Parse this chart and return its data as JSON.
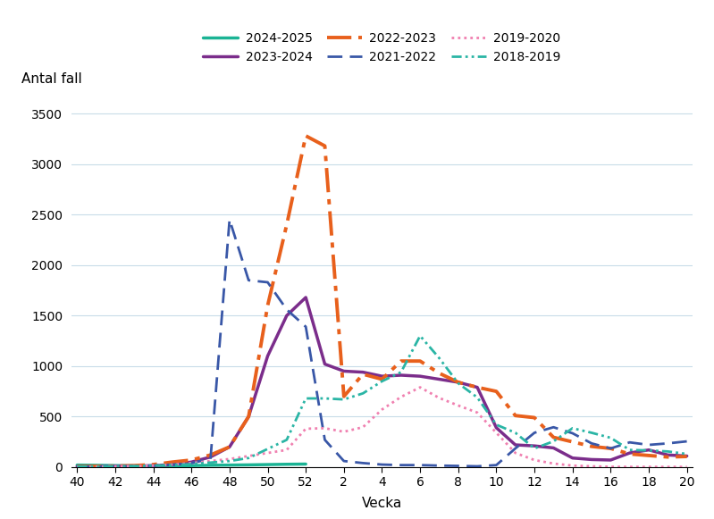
{
  "xlabel": "Vecka",
  "ylabel": "Antal fall",
  "ylim": [
    0,
    3700
  ],
  "yticks": [
    0,
    500,
    1000,
    1500,
    2000,
    2500,
    3000,
    3500
  ],
  "xtick_labels": [
    "40",
    "42",
    "44",
    "46",
    "48",
    "50",
    "52",
    "2",
    "4",
    "6",
    "8",
    "10",
    "12",
    "14",
    "16",
    "18",
    "20"
  ],
  "xtick_weeks": [
    40,
    42,
    44,
    46,
    48,
    50,
    52,
    2,
    4,
    6,
    8,
    10,
    12,
    14,
    16,
    18,
    20
  ],
  "background_color": "#ffffff",
  "grid_color": "#c8dce8",
  "series": [
    {
      "label": "2024-2025",
      "color": "#1ab394",
      "linestyle": "solid",
      "linewidth": 2.5,
      "x": [
        40,
        41,
        42,
        43,
        44,
        45,
        46,
        47,
        48,
        49,
        50,
        51,
        52
      ],
      "y": [
        20,
        18,
        15,
        12,
        10,
        12,
        15,
        18,
        20,
        22,
        25,
        28,
        30
      ]
    },
    {
      "label": "2023-2024",
      "color": "#7b2d8b",
      "linestyle": "solid",
      "linewidth": 2.5,
      "x": [
        40,
        41,
        42,
        43,
        44,
        45,
        46,
        47,
        48,
        49,
        50,
        51,
        52,
        1,
        2,
        3,
        4,
        5,
        6,
        7,
        8,
        9,
        10,
        11,
        12,
        13,
        14,
        15,
        16,
        17,
        18,
        19,
        20
      ],
      "y": [
        5,
        5,
        8,
        10,
        15,
        25,
        50,
        100,
        200,
        500,
        1100,
        1500,
        1680,
        1020,
        950,
        940,
        900,
        910,
        900,
        870,
        840,
        790,
        390,
        220,
        210,
        190,
        90,
        75,
        70,
        140,
        170,
        120,
        110
      ]
    },
    {
      "label": "2022-2023",
      "color": "#e8601c",
      "linestyle": "dashdot",
      "linewidth": 2.8,
      "x": [
        40,
        41,
        42,
        43,
        44,
        45,
        46,
        47,
        48,
        49,
        50,
        51,
        52,
        1,
        2,
        3,
        4,
        5,
        6,
        7,
        8,
        9,
        10,
        11,
        12,
        13,
        14,
        15,
        16,
        17,
        18,
        19,
        20
      ],
      "y": [
        5,
        8,
        10,
        15,
        25,
        50,
        70,
        120,
        200,
        500,
        1600,
        2400,
        3280,
        3180,
        700,
        920,
        870,
        1050,
        1050,
        930,
        840,
        790,
        750,
        510,
        490,
        295,
        250,
        205,
        185,
        130,
        115,
        100,
        105
      ]
    },
    {
      "label": "2021-2022",
      "color": "#3957a7",
      "linestyle": "dashed",
      "linewidth": 2.0,
      "x": [
        40,
        41,
        42,
        43,
        44,
        45,
        46,
        47,
        48,
        49,
        50,
        51,
        52,
        1,
        2,
        3,
        4,
        5,
        6,
        7,
        8,
        9,
        10,
        11,
        12,
        13,
        14,
        15,
        16,
        17,
        18,
        19,
        20
      ],
      "y": [
        5,
        5,
        8,
        10,
        15,
        25,
        40,
        80,
        2450,
        1850,
        1830,
        1560,
        1390,
        270,
        60,
        40,
        25,
        20,
        20,
        15,
        12,
        8,
        20,
        185,
        340,
        395,
        335,
        235,
        185,
        245,
        220,
        235,
        255
      ]
    },
    {
      "label": "2019-2020",
      "color": "#f080b0",
      "linestyle": "dotted",
      "linewidth": 2.0,
      "x": [
        40,
        41,
        42,
        43,
        44,
        45,
        46,
        47,
        48,
        49,
        50,
        51,
        52,
        1,
        2,
        3,
        4,
        5,
        6,
        7,
        8,
        9,
        10,
        11,
        12,
        13,
        14,
        15,
        16,
        17,
        18,
        19,
        20
      ],
      "y": [
        5,
        5,
        8,
        10,
        15,
        25,
        40,
        60,
        80,
        110,
        140,
        170,
        380,
        385,
        350,
        395,
        570,
        695,
        790,
        685,
        610,
        540,
        340,
        140,
        70,
        35,
        15,
        8,
        3,
        2,
        2,
        2,
        2
      ]
    },
    {
      "label": "2018-2019",
      "color": "#2ab5a5",
      "linestyle": "dashdotdot",
      "linewidth": 2.0,
      "x": [
        40,
        41,
        42,
        43,
        44,
        45,
        46,
        47,
        48,
        49,
        50,
        51,
        52,
        1,
        2,
        3,
        4,
        5,
        6,
        7,
        8,
        9,
        10,
        11,
        12,
        13,
        14,
        15,
        16,
        17,
        18,
        19,
        20
      ],
      "y": [
        5,
        5,
        8,
        10,
        15,
        20,
        30,
        45,
        60,
        90,
        180,
        270,
        680,
        680,
        670,
        730,
        850,
        940,
        1300,
        1080,
        830,
        690,
        420,
        340,
        185,
        255,
        385,
        340,
        290,
        170,
        165,
        155,
        130
      ]
    }
  ]
}
